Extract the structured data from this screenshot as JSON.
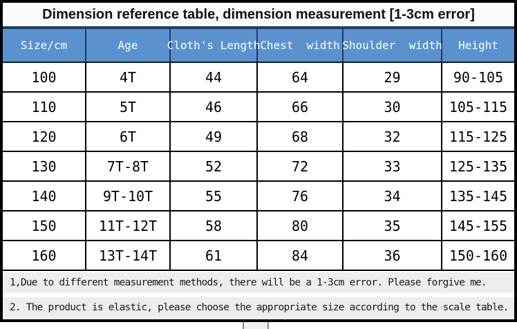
{
  "title": "Dimension reference table, dimension measurement [1-3cm error]",
  "table": {
    "headers": [
      "Size/cm",
      "Age",
      "Cloth's Length",
      "Chest  width",
      "Shoulder  width",
      "Height"
    ],
    "rows": [
      [
        "100",
        "4T",
        "44",
        "64",
        "29",
        "90-105"
      ],
      [
        "110",
        "5T",
        "46",
        "66",
        "30",
        "105-115"
      ],
      [
        "120",
        "6T",
        "49",
        "68",
        "32",
        "115-125"
      ],
      [
        "130",
        "7T-8T",
        "52",
        "72",
        "33",
        "125-135"
      ],
      [
        "140",
        "9T-10T",
        "55",
        "76",
        "34",
        "135-145"
      ],
      [
        "150",
        "11T-12T",
        "58",
        "80",
        "35",
        "145-155"
      ],
      [
        "160",
        "13T-14T",
        "61",
        "84",
        "36",
        "150-160"
      ]
    ]
  },
  "notes": [
    "1,Due to different measurement methods, there will be a 1-3cm error. Please forgive me.",
    "2. The product is elastic, please choose the appropriate size according to the scale table."
  ],
  "colors": {
    "header_bg": "#5b92ce",
    "header_border": "#1e3c63",
    "grid_line": "#000000",
    "note_bg": "#ededed"
  }
}
